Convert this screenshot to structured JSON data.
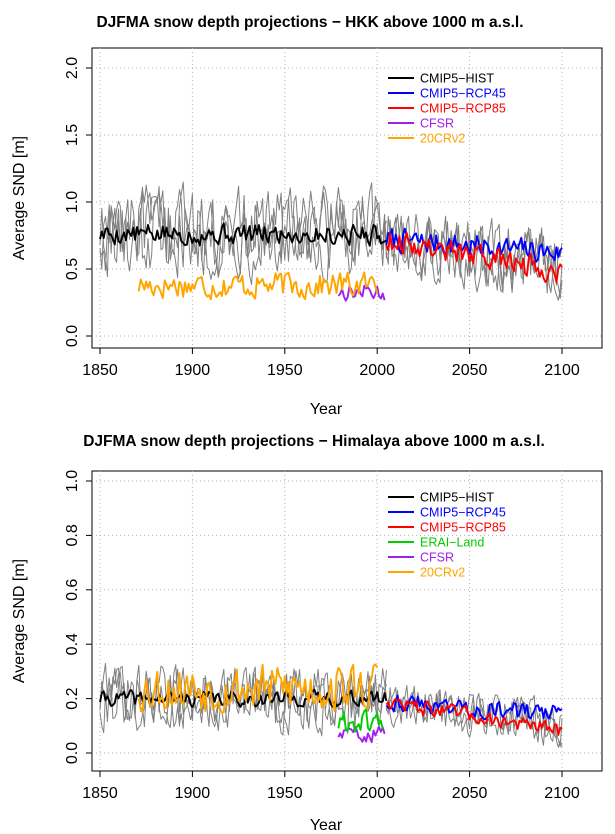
{
  "chart_data": [
    {
      "type": "line",
      "title": "DJFMA snow depth projections − HKK above 1000 m a.s.l.",
      "xlabel": "Year",
      "ylabel": "Average SND [m]",
      "xlim": [
        1850,
        2100
      ],
      "ylim": [
        0,
        2.0
      ],
      "xticks": [
        1850,
        1900,
        1950,
        2000,
        2050,
        2100
      ],
      "yticks": [
        0.0,
        0.5,
        1.0,
        1.5,
        2.0
      ],
      "ytick_labels": [
        "0.0",
        "0.5",
        "1.0",
        "1.5",
        "2.0"
      ],
      "grid": true,
      "legend_position": "top-right",
      "legend": [
        {
          "label": "CMIP5−HIST",
          "color": "#000000"
        },
        {
          "label": "CMIP5−RCP45",
          "color": "#0000ff"
        },
        {
          "label": "CMIP5−RCP85",
          "color": "#ff0000"
        },
        {
          "label": "CFSR",
          "color": "#a020f0"
        },
        {
          "label": "20CRv2",
          "color": "#ffa500"
        }
      ],
      "series": [
        {
          "name": "CMIP5-HIST members",
          "color": "#808080",
          "members": 3,
          "x_start": 1850,
          "x_end": 2005,
          "mean": 0.78,
          "amplitude": 0.28,
          "seed": 11
        },
        {
          "name": "CMIP5-RCP members",
          "color": "#808080",
          "members": 3,
          "x_start": 2005,
          "x_end": 2100,
          "mean_start": 0.72,
          "mean_end": 0.52,
          "amplitude": 0.22,
          "seed": 23
        },
        {
          "name": "CMIP5-HIST",
          "color": "#000000",
          "x_start": 1850,
          "x_end": 2005,
          "mean": 0.76,
          "amplitude": 0.07,
          "seed": 5
        },
        {
          "name": "CMIP5-RCP45",
          "color": "#0000ff",
          "x_start": 2005,
          "x_end": 2100,
          "mean_start": 0.72,
          "mean_end": 0.62,
          "amplitude": 0.08,
          "seed": 7
        },
        {
          "name": "CMIP5-RCP85",
          "color": "#ff0000",
          "x_start": 2005,
          "x_end": 2100,
          "mean_start": 0.72,
          "mean_end": 0.48,
          "amplitude": 0.08,
          "seed": 9
        },
        {
          "name": "CFSR",
          "color": "#a020f0",
          "x_start": 1979,
          "x_end": 2004,
          "mean": 0.33,
          "amplitude": 0.06,
          "seed": 13
        },
        {
          "name": "20CRv2",
          "color": "#ffa500",
          "x_start": 1871,
          "x_end": 2000,
          "mean": 0.38,
          "amplitude": 0.09,
          "seed": 17
        }
      ]
    },
    {
      "type": "line",
      "title": "DJFMA snow depth projections − Himalaya above 1000 m a.s.l.",
      "xlabel": "Year",
      "ylabel": "Average SND [m]",
      "xlim": [
        1850,
        2100
      ],
      "ylim": [
        0,
        1.0
      ],
      "xticks": [
        1850,
        1900,
        1950,
        2000,
        2050,
        2100
      ],
      "yticks": [
        0.0,
        0.2,
        0.4,
        0.6,
        0.8,
        1.0
      ],
      "ytick_labels": [
        "0.0",
        "0.2",
        "0.4",
        "0.6",
        "0.8",
        "1.0"
      ],
      "grid": true,
      "legend_position": "top-right",
      "legend": [
        {
          "label": "CMIP5−HIST",
          "color": "#000000"
        },
        {
          "label": "CMIP5−RCP45",
          "color": "#0000ff"
        },
        {
          "label": "CMIP5−RCP85",
          "color": "#ff0000"
        },
        {
          "label": "ERAI−Land",
          "color": "#00cd00"
        },
        {
          "label": "CFSR",
          "color": "#a020f0"
        },
        {
          "label": "20CRv2",
          "color": "#ffa500"
        }
      ],
      "series": [
        {
          "name": "CMIP5-HIST members",
          "color": "#808080",
          "members": 3,
          "x_start": 1850,
          "x_end": 2005,
          "mean": 0.2,
          "amplitude": 0.1,
          "seed": 31
        },
        {
          "name": "CMIP5-RCP members",
          "color": "#808080",
          "members": 3,
          "x_start": 2005,
          "x_end": 2100,
          "mean_start": 0.19,
          "mean_end": 0.1,
          "amplitude": 0.07,
          "seed": 37
        },
        {
          "name": "CMIP5-HIST",
          "color": "#000000",
          "x_start": 1850,
          "x_end": 2005,
          "mean": 0.2,
          "amplitude": 0.025,
          "seed": 41
        },
        {
          "name": "CMIP5-RCP45",
          "color": "#0000ff",
          "x_start": 2005,
          "x_end": 2100,
          "mean_start": 0.19,
          "mean_end": 0.14,
          "amplitude": 0.03,
          "seed": 43
        },
        {
          "name": "CMIP5-RCP85",
          "color": "#ff0000",
          "x_start": 2005,
          "x_end": 2100,
          "mean_start": 0.19,
          "mean_end": 0.08,
          "amplitude": 0.025,
          "seed": 47
        },
        {
          "name": "20CRv2",
          "color": "#ffa500",
          "x_start": 1871,
          "x_end": 2000,
          "mean": 0.24,
          "amplitude": 0.08,
          "seed": 53
        },
        {
          "name": "CFSR",
          "color": "#a020f0",
          "x_start": 1979,
          "x_end": 2004,
          "mean": 0.07,
          "amplitude": 0.025,
          "seed": 59
        },
        {
          "name": "ERAI-Land",
          "color": "#00cd00",
          "x_start": 1979,
          "x_end": 2003,
          "mean": 0.11,
          "amplitude": 0.04,
          "seed": 61
        }
      ]
    }
  ]
}
